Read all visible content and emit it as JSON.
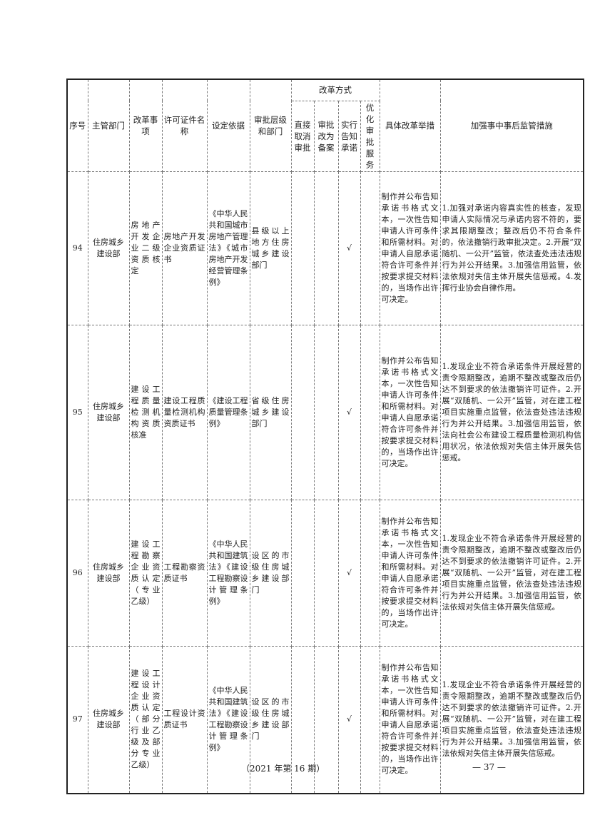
{
  "header": {
    "seq": "序号",
    "dept": "主管部门",
    "item": "改革事项",
    "license": "许可证件名称",
    "basis": "设定依据",
    "level": "审批层级和部门",
    "mode": "改革方式",
    "mode_cols": [
      "直接取消审批",
      "审批改为备案",
      "实行告知承诺",
      "优化审批服务"
    ],
    "measures": "具体改革举措",
    "supervision": "加强事中事后监管措施"
  },
  "rows": [
    {
      "seq": "94",
      "dept": "住房城乡建设部",
      "item": "房地产开发企业二级资质核定",
      "license": "房地产开发企业资质证书",
      "basis": "《中华人民共和国城市房地产管理法》《城市房地产开发经营管理条例》",
      "level": "县级以上地方住房城乡建设部门",
      "m1": "",
      "m2": "",
      "m3": "√",
      "m4": "",
      "measures": "制作并公布告知承诺书格式文本，一次性告知申请人许可条件和所需材料。对申请人自愿承诺符合许可条件并按要求提交材料的，当场作出许可决定。",
      "supervision": "1.加强对承诺内容真实性的核查，发现申请人实际情况与承诺内容不符的，要求其限期整改；整改后仍不符合条件的，依法撤销行政审批决定。2.开展“双随机、一公开”监管，依法查处违法违规行为并公开结果。3.加强信用监管，依法依规对失信主体开展失信惩戒。4.发挥行业协会自律作用。"
    },
    {
      "seq": "95",
      "dept": "住房城乡建设部",
      "item": "建设工程质量检测机构资质核准",
      "license": "建设工程质量检测机构资质证书",
      "basis": "《建设工程质量管理条例》",
      "level": "省级住房城乡建设部门",
      "m1": "",
      "m2": "",
      "m3": "√",
      "m4": "",
      "measures": "制作并公布告知承诺书格式文本，一次性告知申请人许可条件和所需材料。对申请人自愿承诺符合许可条件并按要求提交材料的，当场作出许可决定。",
      "supervision": "1.发现企业不符合承诺条件开展经营的责令限期整改，逾期不整改或整改后仍达不到要求的依法撤销许可证件。2.开展“双随机、一公开”监管，对在建工程项目实施重点监管，依法查处违法违规行为并公开结果。3.加强信用监管，依法向社会公布建设工程质量检测机构信用状况，依法依规对失信主体开展失信惩戒。"
    },
    {
      "seq": "96",
      "dept": "住房城乡建设部",
      "item": "建设工程勘察企业资质认定（专业乙级）",
      "license": "工程勘察资质证书",
      "basis": "《中华人民共和国建筑法》《建设工程勘察设计管理条例》",
      "level": "设区的市级住房城乡建设部门",
      "m1": "",
      "m2": "",
      "m3": "√",
      "m4": "",
      "measures": "制作并公布告知承诺书格式文本，一次性告知申请人许可条件和所需材料。对申请人自愿承诺符合许可条件并按要求提交材料的，当场作出许可决定。",
      "supervision": "1.发现企业不符合承诺条件开展经营的责令限期整改，逾期不整改或整改后仍达不到要求的依法撤销许可证件。2.开展“双随机、一公开”监管，对在建工程项目实施重点监管，依法查处违法违规行为并公开结果。3.加强信用监管，依法依规对失信主体开展失信惩戒。"
    },
    {
      "seq": "97",
      "dept": "住房城乡建设部",
      "item": "建设工程设计企业资质认定（部分行业乙级及部分专业乙级）",
      "license": "工程设计资质证书",
      "basis": "《中华人民共和国建筑法》《建设工程勘察设计管理条例》",
      "level": "设区的市级住房城乡建设部门",
      "m1": "",
      "m2": "",
      "m3": "√",
      "m4": "",
      "measures": "制作并公布告知承诺书格式文本，一次性告知申请人许可条件和所需材料。对申请人自愿承诺符合许可条件并按要求提交材料的，当场作出许可决定。",
      "supervision": "1.发现企业不符合承诺条件开展经营的责令限期整改，逾期不整改或整改后仍达不到要求的依法撤销许可证件。2.开展“双随机、一公开”监管，对在建工程项目实施重点监管，依法查处违法违规行为并公开结果。3.加强信用监管，依法依规对失信主体开展失信惩戒。"
    }
  ],
  "footer": {
    "issue": "（2021 年第 16 期）",
    "page": "— 37 —"
  }
}
